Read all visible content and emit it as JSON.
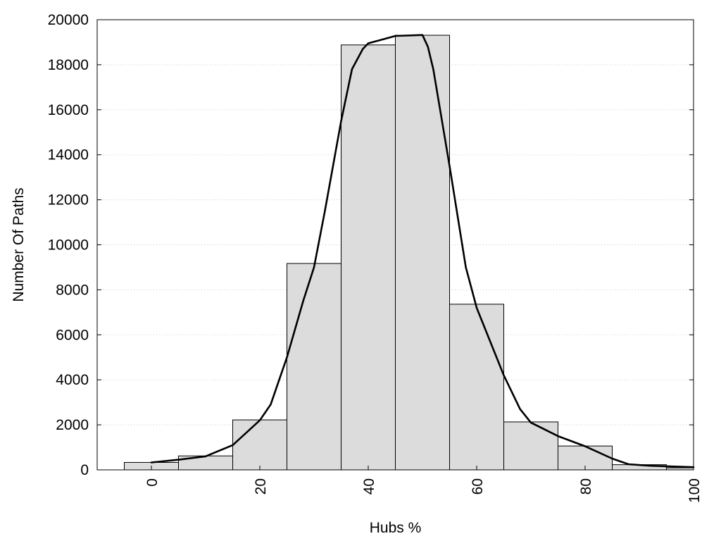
{
  "chart_data": {
    "type": "bar",
    "title": "",
    "xlabel": "Hubs %",
    "ylabel": "Number Of Paths",
    "xlim": [
      -10,
      100
    ],
    "ylim": [
      0,
      20000
    ],
    "xticks": [
      0,
      20,
      40,
      60,
      80,
      100
    ],
    "yticks": [
      0,
      2000,
      4000,
      6000,
      8000,
      10000,
      12000,
      14000,
      16000,
      18000,
      20000
    ],
    "grid": "horizontal-dotted",
    "bar_color": "#dcdcdc",
    "bar_edge_color": "#000000",
    "bin_width": 10,
    "bins": [
      {
        "center": 0,
        "value": 330
      },
      {
        "center": 10,
        "value": 620
      },
      {
        "center": 20,
        "value": 2220
      },
      {
        "center": 30,
        "value": 9170
      },
      {
        "center": 40,
        "value": 18880
      },
      {
        "center": 50,
        "value": 19310
      },
      {
        "center": 60,
        "value": 7360
      },
      {
        "center": 70,
        "value": 2130
      },
      {
        "center": 80,
        "value": 1060
      },
      {
        "center": 90,
        "value": 230
      },
      {
        "center": 100,
        "value": 90
      }
    ],
    "curve": {
      "name": "",
      "color": "#000000",
      "points": [
        [
          0,
          330
        ],
        [
          5,
          450
        ],
        [
          10,
          600
        ],
        [
          15,
          1100
        ],
        [
          20,
          2200
        ],
        [
          22,
          2900
        ],
        [
          25,
          5000
        ],
        [
          28,
          7500
        ],
        [
          30,
          9000
        ],
        [
          32,
          11500
        ],
        [
          35,
          15500
        ],
        [
          37,
          17800
        ],
        [
          39,
          18700
        ],
        [
          40,
          18950
        ],
        [
          43,
          19150
        ],
        [
          45,
          19280
        ],
        [
          50,
          19320
        ],
        [
          51,
          18800
        ],
        [
          52,
          17800
        ],
        [
          55,
          13500
        ],
        [
          58,
          9000
        ],
        [
          60,
          7200
        ],
        [
          65,
          4200
        ],
        [
          68,
          2700
        ],
        [
          70,
          2100
        ],
        [
          75,
          1500
        ],
        [
          80,
          1050
        ],
        [
          85,
          500
        ],
        [
          88,
          250
        ],
        [
          92,
          180
        ],
        [
          100,
          120
        ]
      ]
    }
  }
}
